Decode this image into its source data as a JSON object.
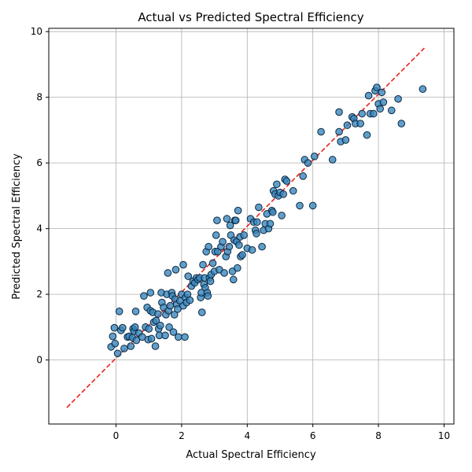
{
  "chart_data": {
    "type": "scatter",
    "title": "Actual vs Predicted Spectral Efficiency",
    "xlabel": "Actual Spectral Efficiency",
    "ylabel": "Predicted Spectral Efficiency",
    "xlim": [
      -2.05,
      10.3
    ],
    "ylim": [
      -1.95,
      10.1
    ],
    "xticks": [
      0,
      2,
      4,
      6,
      8,
      10
    ],
    "yticks": [
      0,
      2,
      4,
      6,
      8,
      10
    ],
    "grid": true,
    "colors": {
      "marker_fill": "#3a87bd",
      "marker_edge": "#0b2740",
      "reference_line": "#e8241c"
    },
    "reference_line": {
      "style": "dashed",
      "points": [
        [
          -1.5,
          -1.45
        ],
        [
          9.4,
          9.5
        ]
      ]
    },
    "points": [
      [
        -0.15,
        0.4
      ],
      [
        -0.1,
        0.72
      ],
      [
        -0.05,
        0.98
      ],
      [
        -0.03,
        0.5
      ],
      [
        0.05,
        0.2
      ],
      [
        0.1,
        1.48
      ],
      [
        0.15,
        0.9
      ],
      [
        0.2,
        0.98
      ],
      [
        0.25,
        0.35
      ],
      [
        0.35,
        0.7
      ],
      [
        0.4,
        0.72
      ],
      [
        0.45,
        0.42
      ],
      [
        0.5,
        0.68
      ],
      [
        0.52,
        0.95
      ],
      [
        0.55,
        0.88
      ],
      [
        0.58,
        1.0
      ],
      [
        0.6,
        1.48
      ],
      [
        0.62,
        0.6
      ],
      [
        0.7,
        0.82
      ],
      [
        0.8,
        0.7
      ],
      [
        0.85,
        1.95
      ],
      [
        0.9,
        1.0
      ],
      [
        0.95,
        1.6
      ],
      [
        0.98,
        0.62
      ],
      [
        1.0,
        0.95
      ],
      [
        1.05,
        2.05
      ],
      [
        1.05,
        1.5
      ],
      [
        1.08,
        0.65
      ],
      [
        1.12,
        1.45
      ],
      [
        1.15,
        1.15
      ],
      [
        1.2,
        0.42
      ],
      [
        1.22,
        1.2
      ],
      [
        1.28,
        1.4
      ],
      [
        1.3,
        0.95
      ],
      [
        1.32,
        0.75
      ],
      [
        1.35,
        1.05
      ],
      [
        1.38,
        2.05
      ],
      [
        1.4,
        1.75
      ],
      [
        1.45,
        1.6
      ],
      [
        1.5,
        0.75
      ],
      [
        1.52,
        1.38
      ],
      [
        1.55,
        2.0
      ],
      [
        1.58,
        2.65
      ],
      [
        1.6,
        1.5
      ],
      [
        1.62,
        1.0
      ],
      [
        1.65,
        1.65
      ],
      [
        1.7,
        2.05
      ],
      [
        1.72,
        1.95
      ],
      [
        1.75,
        0.85
      ],
      [
        1.78,
        1.38
      ],
      [
        1.8,
        1.85
      ],
      [
        1.82,
        2.75
      ],
      [
        1.85,
        1.7
      ],
      [
        1.88,
        1.55
      ],
      [
        1.9,
        0.7
      ],
      [
        1.95,
        1.8
      ],
      [
        2.0,
        2.0
      ],
      [
        2.05,
        1.65
      ],
      [
        2.05,
        2.9
      ],
      [
        2.1,
        0.7
      ],
      [
        2.12,
        1.9
      ],
      [
        2.15,
        1.75
      ],
      [
        2.18,
        2.0
      ],
      [
        2.2,
        2.55
      ],
      [
        2.25,
        1.82
      ],
      [
        2.3,
        2.25
      ],
      [
        2.35,
        2.4
      ],
      [
        2.4,
        2.35
      ],
      [
        2.45,
        2.5
      ],
      [
        2.5,
        2.45
      ],
      [
        2.55,
        2.5
      ],
      [
        2.58,
        1.9
      ],
      [
        2.6,
        2.05
      ],
      [
        2.62,
        1.45
      ],
      [
        2.65,
        2.9
      ],
      [
        2.68,
        2.3
      ],
      [
        2.7,
        2.5
      ],
      [
        2.72,
        2.2
      ],
      [
        2.75,
        3.3
      ],
      [
        2.78,
        2.05
      ],
      [
        2.8,
        1.95
      ],
      [
        2.82,
        3.45
      ],
      [
        2.85,
        2.5
      ],
      [
        2.88,
        2.4
      ],
      [
        2.9,
        2.6
      ],
      [
        2.95,
        2.95
      ],
      [
        3.0,
        2.7
      ],
      [
        3.02,
        3.3
      ],
      [
        3.05,
        3.8
      ],
      [
        3.08,
        4.25
      ],
      [
        3.1,
        3.3
      ],
      [
        3.15,
        2.75
      ],
      [
        3.2,
        3.45
      ],
      [
        3.25,
        3.6
      ],
      [
        3.3,
        2.65
      ],
      [
        3.35,
        3.15
      ],
      [
        3.38,
        4.3
      ],
      [
        3.4,
        3.3
      ],
      [
        3.45,
        3.45
      ],
      [
        3.48,
        4.1
      ],
      [
        3.5,
        3.8
      ],
      [
        3.55,
        2.7
      ],
      [
        3.58,
        2.45
      ],
      [
        3.6,
        3.65
      ],
      [
        3.62,
        4.25
      ],
      [
        3.65,
        4.25
      ],
      [
        3.68,
        3.6
      ],
      [
        3.7,
        2.8
      ],
      [
        3.72,
        4.55
      ],
      [
        3.75,
        3.5
      ],
      [
        3.78,
        3.75
      ],
      [
        3.8,
        3.15
      ],
      [
        3.85,
        3.2
      ],
      [
        3.9,
        3.8
      ],
      [
        4.0,
        3.4
      ],
      [
        4.1,
        4.3
      ],
      [
        4.15,
        3.35
      ],
      [
        4.2,
        4.2
      ],
      [
        4.25,
        3.95
      ],
      [
        4.28,
        3.85
      ],
      [
        4.3,
        4.2
      ],
      [
        4.35,
        4.65
      ],
      [
        4.45,
        3.45
      ],
      [
        4.5,
        3.95
      ],
      [
        4.55,
        4.15
      ],
      [
        4.6,
        4.45
      ],
      [
        4.65,
        4.0
      ],
      [
        4.7,
        4.15
      ],
      [
        4.75,
        4.55
      ],
      [
        4.78,
        4.5
      ],
      [
        4.8,
        5.15
      ],
      [
        4.85,
        5.05
      ],
      [
        4.9,
        5.35
      ],
      [
        4.95,
        5.0
      ],
      [
        5.0,
        5.1
      ],
      [
        5.05,
        4.4
      ],
      [
        5.1,
        5.05
      ],
      [
        5.15,
        5.5
      ],
      [
        5.2,
        5.45
      ],
      [
        5.4,
        5.15
      ],
      [
        5.6,
        4.7
      ],
      [
        5.7,
        5.6
      ],
      [
        5.75,
        6.1
      ],
      [
        5.85,
        6.0
      ],
      [
        6.0,
        4.7
      ],
      [
        6.05,
        6.2
      ],
      [
        6.25,
        6.95
      ],
      [
        6.6,
        6.1
      ],
      [
        6.8,
        7.55
      ],
      [
        6.8,
        6.95
      ],
      [
        6.85,
        6.65
      ],
      [
        7.0,
        6.7
      ],
      [
        7.05,
        7.15
      ],
      [
        7.2,
        7.4
      ],
      [
        7.25,
        7.35
      ],
      [
        7.3,
        7.2
      ],
      [
        7.45,
        7.2
      ],
      [
        7.5,
        7.5
      ],
      [
        7.65,
        6.85
      ],
      [
        7.7,
        8.05
      ],
      [
        7.75,
        7.5
      ],
      [
        7.85,
        7.5
      ],
      [
        7.9,
        8.2
      ],
      [
        7.95,
        8.3
      ],
      [
        8.0,
        7.8
      ],
      [
        8.05,
        7.65
      ],
      [
        8.1,
        8.15
      ],
      [
        8.15,
        7.85
      ],
      [
        8.4,
        7.6
      ],
      [
        8.6,
        7.95
      ],
      [
        8.7,
        7.2
      ],
      [
        9.35,
        8.25
      ]
    ]
  }
}
